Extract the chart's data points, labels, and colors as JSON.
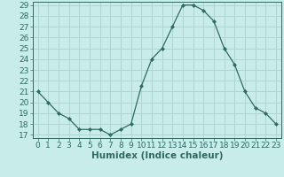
{
  "x": [
    0,
    1,
    2,
    3,
    4,
    5,
    6,
    7,
    8,
    9,
    10,
    11,
    12,
    13,
    14,
    15,
    16,
    17,
    18,
    19,
    20,
    21,
    22,
    23
  ],
  "y": [
    21,
    20,
    19,
    18.5,
    17.5,
    17.5,
    17.5,
    17,
    17.5,
    18,
    21.5,
    24,
    25,
    27,
    29,
    29,
    28.5,
    27.5,
    25,
    23.5,
    21,
    19.5,
    19,
    18
  ],
  "line_color": "#2e6b5e",
  "marker": "D",
  "marker_size": 2.2,
  "bg_color": "#c8ecea",
  "grid_color": "#b0d4d0",
  "tick_color": "#2e6b5e",
  "label_color": "#2e6b5e",
  "xlabel": "Humidex (Indice chaleur)",
  "ylim_min": 17,
  "ylim_max": 29,
  "yticks": [
    17,
    18,
    19,
    20,
    21,
    22,
    23,
    24,
    25,
    26,
    27,
    28,
    29
  ],
  "xticks": [
    0,
    1,
    2,
    3,
    4,
    5,
    6,
    7,
    8,
    9,
    10,
    11,
    12,
    13,
    14,
    15,
    16,
    17,
    18,
    19,
    20,
    21,
    22,
    23
  ],
  "font_size": 6.5,
  "label_font_size": 7.5
}
